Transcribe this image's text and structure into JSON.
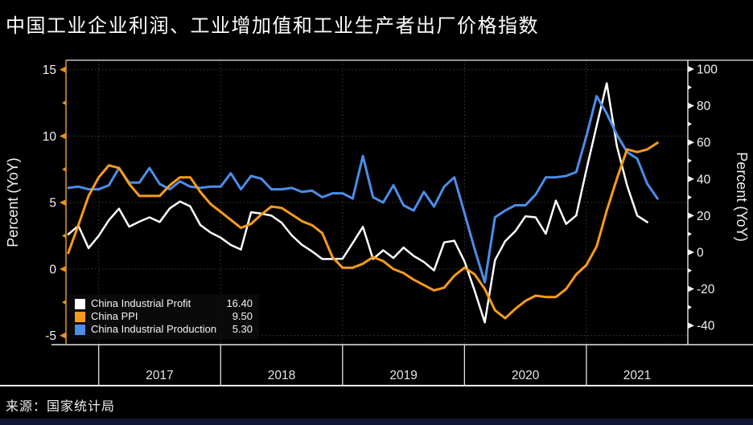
{
  "title": "中国工业企业利润、工业增加值和工业生产者出厂价格指数",
  "source": "来源：国家统计局",
  "legend": [
    {
      "label": "China Industrial Profit",
      "value": "16.40",
      "color": "#ffffff"
    },
    {
      "label": "China PPI",
      "value": "9.50",
      "color": "#f79b1e"
    },
    {
      "label": "China Industrial Production",
      "value": "5.30",
      "color": "#4c8ee8"
    }
  ],
  "colors": {
    "background": "#000000",
    "profit_line": "#ffffff",
    "ppi_line": "#f79b1e",
    "production_line": "#4c8ee8",
    "left_axis": "#d98c1c",
    "grid": "#404040",
    "frame": "#e6e6e6",
    "tick_text": "#f2f2f2",
    "bottom_bar": "#101734"
  },
  "chart_data": {
    "type": "line",
    "title": "中国工业企业利润、工业增加值和工业生产者出厂价格指数",
    "x_unit": "monthly",
    "x_start": "2016-10",
    "x_end": "2021-08",
    "x_tick_labels": [
      "2017",
      "2018",
      "2019",
      "2020",
      "2021"
    ],
    "grid": "dotted",
    "legend_position": "bottom-left",
    "left_axis": {
      "label": "Percent (YoY)",
      "ticks": [
        15,
        10,
        5,
        0,
        -5
      ],
      "minor_step": 2.5,
      "range": [
        -5.7,
        15.7
      ]
    },
    "right_axis": {
      "label": "Percent (YoY)",
      "ticks": [
        100,
        80,
        60,
        40,
        20,
        0,
        -20,
        -40
      ],
      "minor_step": 10,
      "range": [
        -46,
        105
      ]
    },
    "series": [
      {
        "name": "China Industrial Profit",
        "axis": "right",
        "color": "#ffffff",
        "latest": 16.4,
        "values": [
          9.8,
          14.5,
          2.3,
          9.0,
          17.5,
          23.8,
          14.0,
          16.7,
          19.1,
          16.5,
          24.0,
          27.7,
          25.1,
          14.9,
          10.8,
          8.0,
          4.0,
          1.5,
          21.9,
          21.1,
          20.0,
          16.2,
          9.2,
          4.1,
          0.5,
          -3.7,
          -3.7,
          -3.5,
          5.0,
          13.9,
          -3.7,
          1.1,
          -3.1,
          2.6,
          -2.0,
          -5.3,
          -9.9,
          5.4,
          6.3,
          -5.0,
          -21.0,
          -38.3,
          -4.3,
          6.0,
          11.5,
          19.6,
          19.1,
          10.1,
          28.2,
          15.5,
          20.1,
          45.0,
          69.0,
          92.3,
          58.0,
          36.4,
          20.0,
          16.4,
          null
        ]
      },
      {
        "name": "China PPI",
        "axis": "left",
        "color": "#f79b1e",
        "latest": 9.5,
        "values": [
          1.2,
          3.3,
          5.5,
          6.9,
          7.8,
          7.6,
          6.4,
          5.5,
          5.5,
          5.5,
          6.3,
          6.9,
          6.9,
          5.8,
          4.9,
          4.3,
          3.7,
          3.1,
          3.4,
          4.1,
          4.7,
          4.6,
          4.1,
          3.6,
          3.3,
          2.7,
          0.9,
          0.1,
          0.1,
          0.4,
          0.9,
          0.6,
          0.0,
          -0.3,
          -0.8,
          -1.2,
          -1.6,
          -1.4,
          -0.5,
          0.1,
          -0.4,
          -1.5,
          -3.1,
          -3.7,
          -3.0,
          -2.4,
          -2.0,
          -2.1,
          -2.1,
          -1.5,
          -0.4,
          0.3,
          1.7,
          4.4,
          6.8,
          9.0,
          8.8,
          9.0,
          9.5
        ]
      },
      {
        "name": "China Industrial Production",
        "axis": "left",
        "color": "#4c8ee8",
        "latest": 5.3,
        "values": [
          6.1,
          6.2,
          6.0,
          6.0,
          6.3,
          7.6,
          6.5,
          6.5,
          7.6,
          6.4,
          6.0,
          6.6,
          6.2,
          6.1,
          6.2,
          6.2,
          7.2,
          6.0,
          7.0,
          6.8,
          6.0,
          6.0,
          6.1,
          5.8,
          5.9,
          5.4,
          5.7,
          5.7,
          5.3,
          8.5,
          5.4,
          5.0,
          6.3,
          4.8,
          4.4,
          5.8,
          4.7,
          6.2,
          6.9,
          4.2,
          1.5,
          -1.0,
          3.9,
          4.4,
          4.8,
          4.8,
          5.6,
          6.9,
          6.9,
          7.0,
          7.3,
          10.0,
          13.0,
          11.7,
          10.1,
          8.8,
          8.3,
          6.4,
          5.3
        ]
      }
    ]
  }
}
